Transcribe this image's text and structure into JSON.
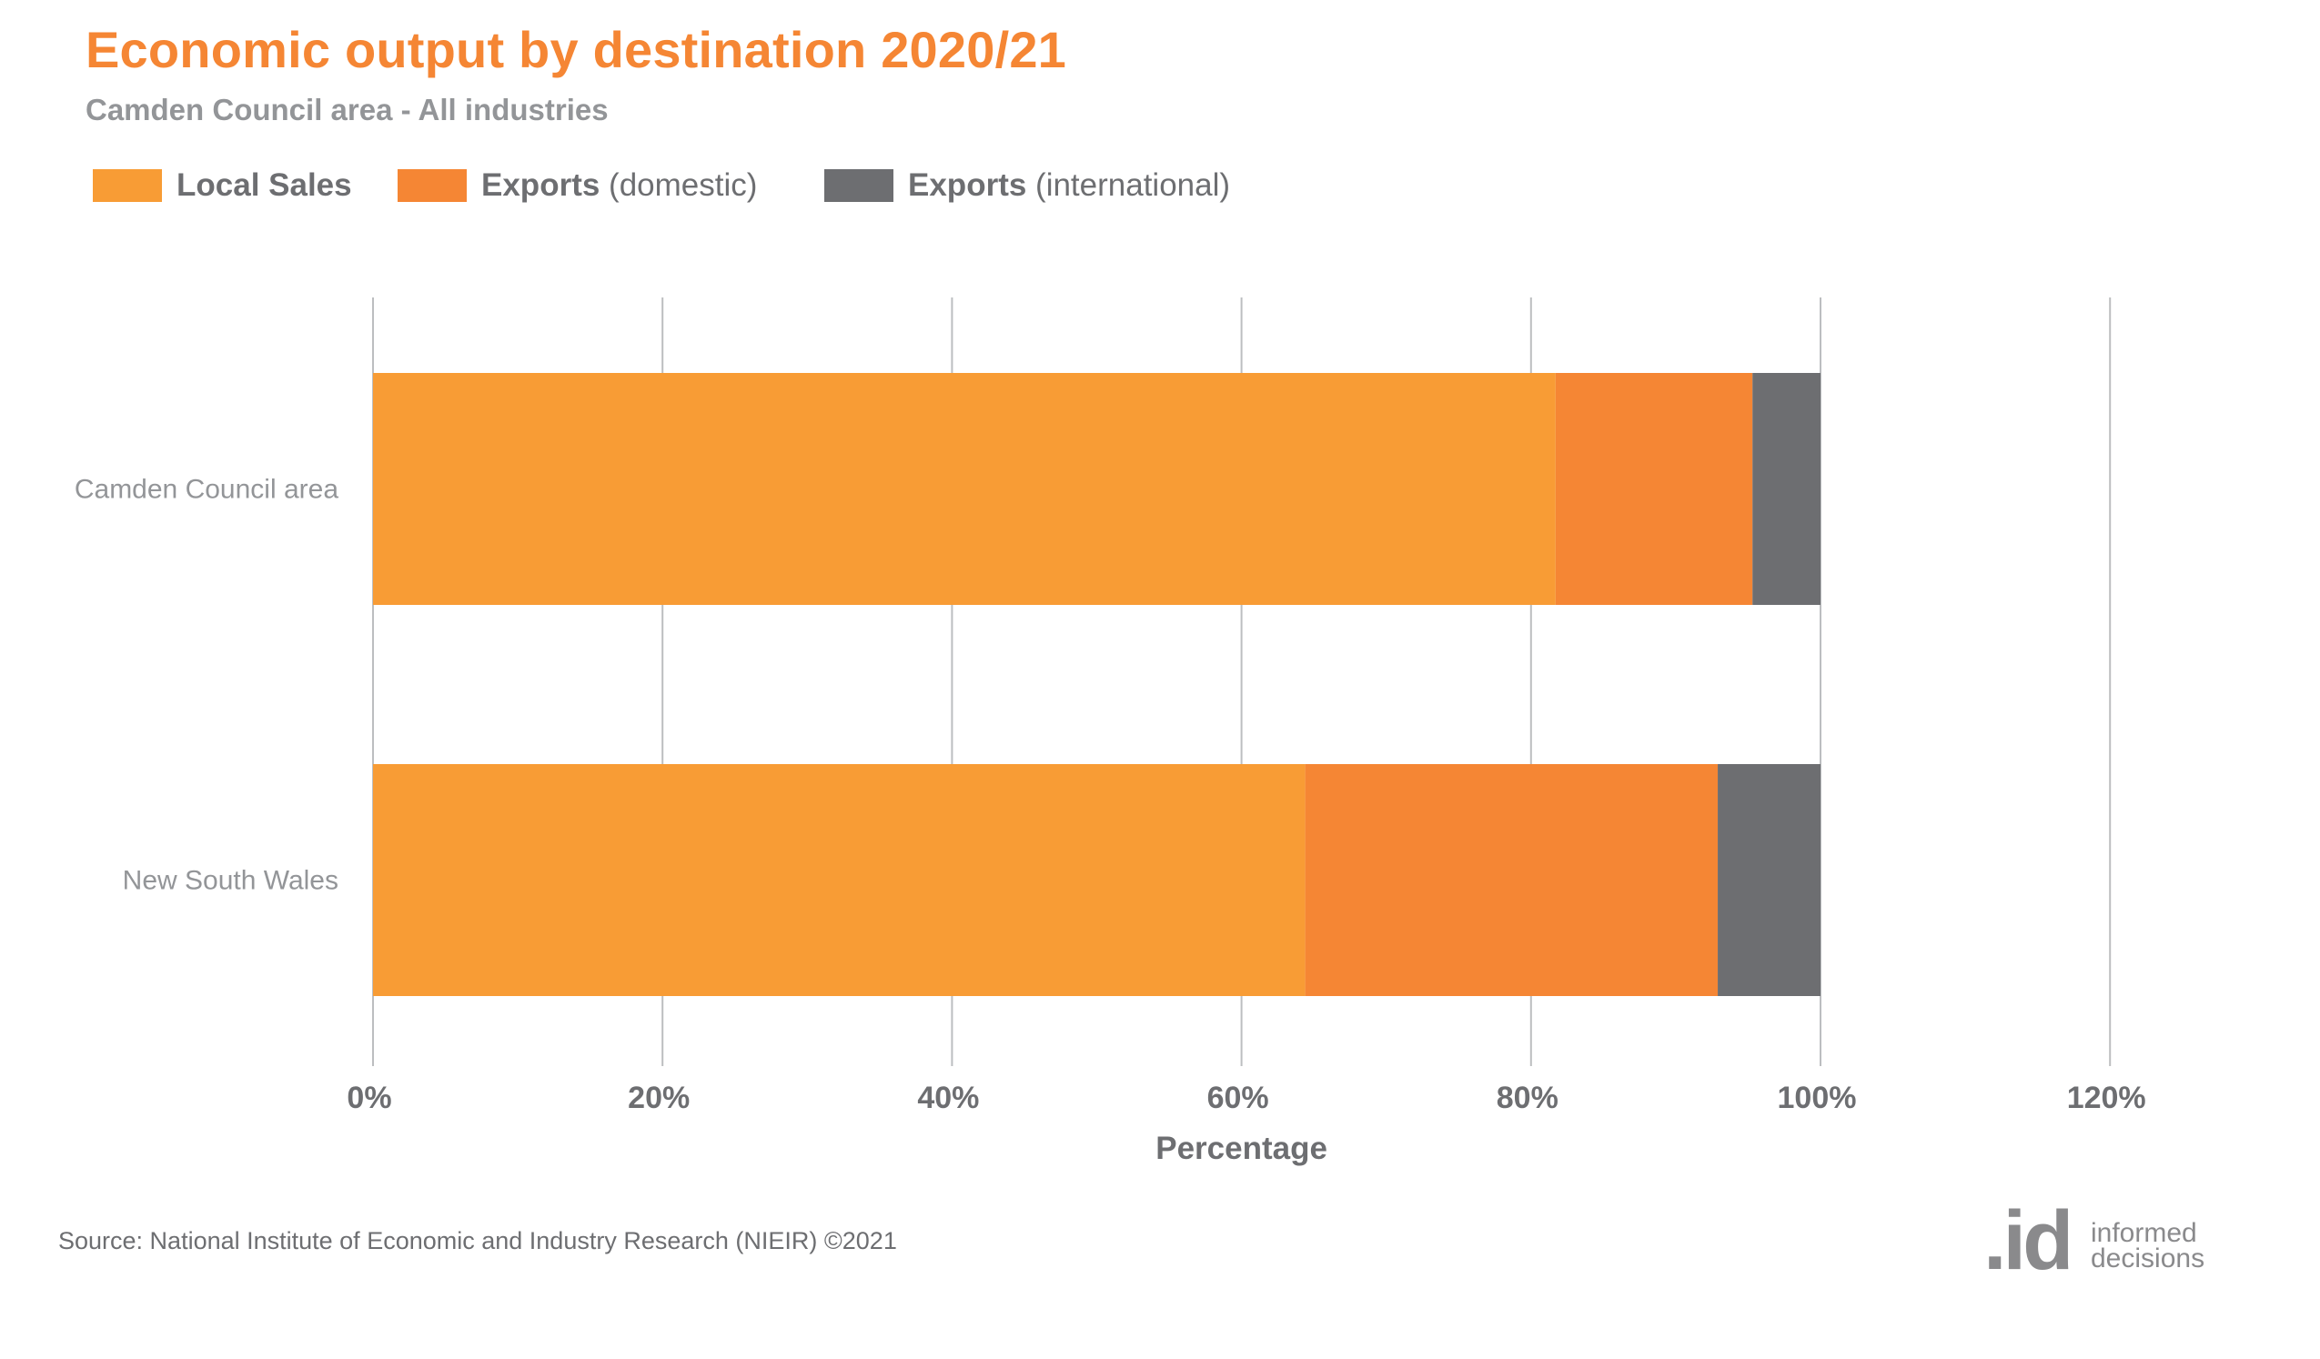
{
  "header": {
    "title": "Economic output by destination 2020/21",
    "subtitle": "Camden Council area - All industries"
  },
  "legend": [
    {
      "bold": "Local Sales",
      "rest": "",
      "color": "#f89c35"
    },
    {
      "bold": "Exports",
      "rest": " (domestic)",
      "color": "#f58634"
    },
    {
      "bold": "Exports",
      "rest": " (international)",
      "color": "#6d6e71"
    }
  ],
  "footer": {
    "source": "Source: National Institute of Economic and Industry Research (NIEIR) ©2021",
    "logo_mark": ".id",
    "logo_line1": "informed",
    "logo_line2": "decisions"
  },
  "chart_data": {
    "type": "bar",
    "orientation": "horizontal",
    "stacked": true,
    "title": "Economic output by destination 2020/21",
    "subtitle": "Camden Council area - All industries",
    "categories": [
      "Camden Council area",
      "New South Wales"
    ],
    "series": [
      {
        "name": "Local Sales",
        "color": "#f89c35",
        "values": [
          81.7,
          64.4
        ]
      },
      {
        "name": "Exports (domestic)",
        "color": "#f58634",
        "values": [
          13.6,
          28.5
        ]
      },
      {
        "name": "Exports (international)",
        "color": "#6d6e71",
        "values": [
          4.7,
          7.1
        ]
      }
    ],
    "xlabel": "Percentage",
    "ylabel": "",
    "xlim": [
      0,
      120
    ],
    "xticks": [
      0,
      20,
      40,
      60,
      80,
      100,
      120
    ],
    "xtick_labels": [
      "0%",
      "20%",
      "40%",
      "60%",
      "80%",
      "100%",
      "120%"
    ],
    "grid": "vertical",
    "legend_position": "top-left"
  }
}
